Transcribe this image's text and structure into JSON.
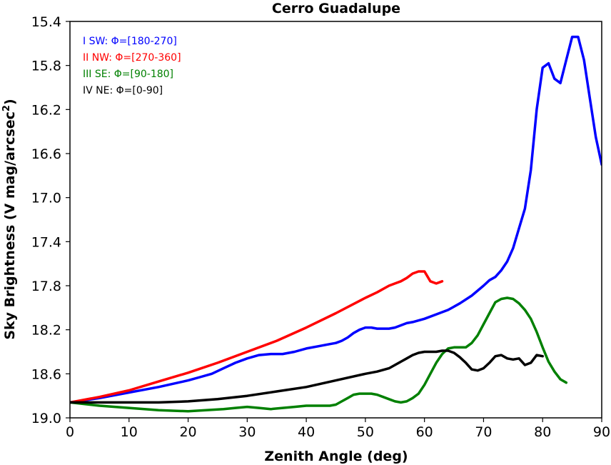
{
  "chart_data": {
    "type": "line",
    "title": "Cerro Guadalupe",
    "xlabel": "Zenith Angle (deg)",
    "ylabel_main": "Sky Brightness (V mag/arcsec",
    "ylabel_sup": "2",
    "ylabel_end": ")",
    "xlim": [
      0,
      90
    ],
    "ylim": [
      19.0,
      15.4
    ],
    "y_inverted": true,
    "grid": false,
    "legend_placement": "top-left",
    "x_ticks": [
      "0",
      "10",
      "20",
      "30",
      "40",
      "50",
      "60",
      "70",
      "80",
      "90"
    ],
    "y_ticks": [
      "15.4",
      "15.8",
      "16.2",
      "16.6",
      "17.0",
      "17.4",
      "17.8",
      "18.2",
      "18.6",
      "19.0"
    ],
    "series": [
      {
        "name": "I SW: Φ=[180-270]",
        "color": "#0000ff",
        "x": [
          0,
          5,
          10,
          15,
          20,
          22,
          24,
          26,
          28,
          30,
          32,
          34,
          36,
          38,
          40,
          42,
          44,
          45,
          46,
          47,
          48,
          49,
          50,
          51,
          52,
          53,
          54,
          55,
          56,
          57,
          58,
          60,
          62,
          64,
          66,
          68,
          70,
          71,
          72,
          73,
          74,
          75,
          76,
          77,
          78,
          79,
          80,
          81,
          82,
          83,
          84,
          85,
          86,
          87,
          88,
          89,
          90
        ],
        "values": [
          18.86,
          18.82,
          18.77,
          18.72,
          18.66,
          18.63,
          18.6,
          18.55,
          18.5,
          18.46,
          18.43,
          18.42,
          18.42,
          18.4,
          18.37,
          18.35,
          18.33,
          18.32,
          18.3,
          18.27,
          18.23,
          18.2,
          18.18,
          18.18,
          18.19,
          18.19,
          18.19,
          18.18,
          18.16,
          18.14,
          18.13,
          18.1,
          18.06,
          18.02,
          17.96,
          17.89,
          17.8,
          17.75,
          17.72,
          17.66,
          17.58,
          17.46,
          17.28,
          17.1,
          16.75,
          16.2,
          15.82,
          15.78,
          15.92,
          15.96,
          15.75,
          15.54,
          15.54,
          15.75,
          16.1,
          16.45,
          16.7
        ]
      },
      {
        "name": "II NW: Φ=[270-360]",
        "color": "#ff0000",
        "x": [
          0,
          5,
          10,
          15,
          20,
          25,
          30,
          35,
          40,
          45,
          50,
          52,
          54,
          55,
          56,
          57,
          58,
          59,
          60,
          61,
          62,
          63
        ],
        "values": [
          18.86,
          18.81,
          18.75,
          18.67,
          18.59,
          18.5,
          18.4,
          18.3,
          18.18,
          18.05,
          17.91,
          17.86,
          17.8,
          17.78,
          17.76,
          17.73,
          17.69,
          17.67,
          17.67,
          17.76,
          17.78,
          17.76
        ]
      },
      {
        "name": "III SE: Φ=[90-180]",
        "color": "#008000",
        "x": [
          0,
          5,
          10,
          15,
          20,
          23,
          26,
          28,
          30,
          32,
          34,
          36,
          38,
          40,
          42,
          44,
          45,
          46,
          47,
          48,
          49,
          50,
          51,
          52,
          53,
          54,
          55,
          56,
          57,
          58,
          59,
          60,
          61,
          62,
          63,
          64,
          65,
          66,
          67,
          68,
          69,
          70,
          71,
          72,
          73,
          74,
          75,
          76,
          77,
          78,
          79,
          80,
          81,
          82,
          83,
          84
        ],
        "values": [
          18.86,
          18.89,
          18.91,
          18.93,
          18.94,
          18.93,
          18.92,
          18.91,
          18.9,
          18.91,
          18.92,
          18.91,
          18.9,
          18.89,
          18.89,
          18.89,
          18.88,
          18.85,
          18.82,
          18.79,
          18.78,
          18.78,
          18.78,
          18.79,
          18.81,
          18.83,
          18.85,
          18.86,
          18.85,
          18.82,
          18.78,
          18.7,
          18.6,
          18.5,
          18.42,
          18.37,
          18.36,
          18.36,
          18.36,
          18.32,
          18.25,
          18.15,
          18.05,
          17.95,
          17.92,
          17.91,
          17.92,
          17.96,
          18.02,
          18.1,
          18.22,
          18.36,
          18.49,
          18.58,
          18.65,
          18.68
        ]
      },
      {
        "name": "IV NE: Φ=[0-90]",
        "color": "#000000",
        "x": [
          0,
          5,
          10,
          15,
          20,
          25,
          30,
          35,
          40,
          45,
          50,
          52,
          54,
          55,
          56,
          57,
          58,
          59,
          60,
          61,
          62,
          63,
          64,
          65,
          66,
          67,
          68,
          69,
          70,
          71,
          72,
          73,
          74,
          75,
          76,
          77,
          78,
          79,
          80
        ],
        "values": [
          18.86,
          18.86,
          18.86,
          18.86,
          18.85,
          18.83,
          18.8,
          18.76,
          18.72,
          18.66,
          18.6,
          18.58,
          18.55,
          18.52,
          18.49,
          18.46,
          18.43,
          18.41,
          18.4,
          18.4,
          18.4,
          18.39,
          18.39,
          18.41,
          18.45,
          18.5,
          18.56,
          18.57,
          18.55,
          18.5,
          18.44,
          18.43,
          18.46,
          18.47,
          18.46,
          18.52,
          18.5,
          18.43,
          18.44
        ]
      }
    ]
  }
}
